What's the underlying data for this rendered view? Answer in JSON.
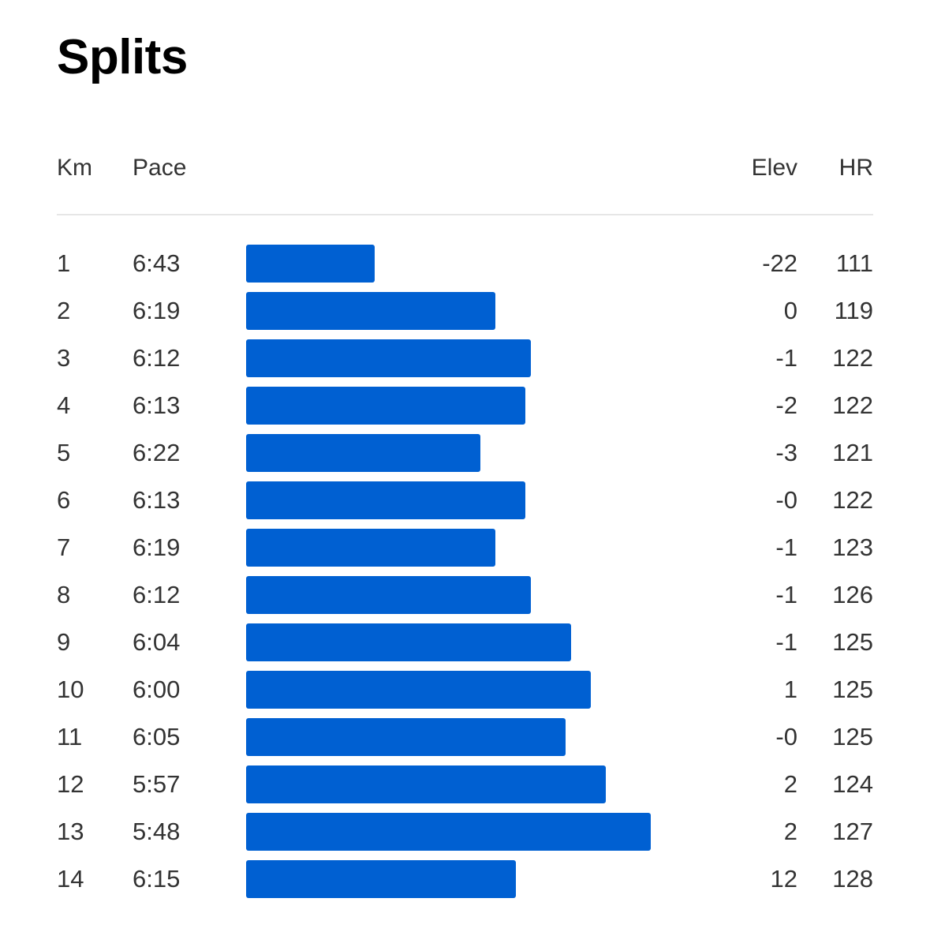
{
  "title": "Splits",
  "headers": {
    "km": "Km",
    "pace": "Pace",
    "elev": "Elev",
    "hr": "HR"
  },
  "colors": {
    "bar": "#0060D2",
    "divider": "#e6e6e6",
    "text": "#333333",
    "title": "#000000"
  },
  "chart_data": {
    "type": "bar",
    "orientation": "horizontal",
    "title": "Splits",
    "columns": [
      "Km",
      "Pace",
      "Elev",
      "HR"
    ],
    "bar_value": "pace_seconds_per_km",
    "categories": [
      "1",
      "2",
      "3",
      "4",
      "5",
      "6",
      "7",
      "8",
      "9",
      "10",
      "11",
      "12",
      "13",
      "14"
    ],
    "rows": [
      {
        "km": "1",
        "pace": "6:43",
        "pace_seconds": 403,
        "elev": "-22",
        "hr": "111"
      },
      {
        "km": "2",
        "pace": "6:19",
        "pace_seconds": 379,
        "elev": "0",
        "hr": "119"
      },
      {
        "km": "3",
        "pace": "6:12",
        "pace_seconds": 372,
        "elev": "-1",
        "hr": "122"
      },
      {
        "km": "4",
        "pace": "6:13",
        "pace_seconds": 373,
        "elev": "-2",
        "hr": "122"
      },
      {
        "km": "5",
        "pace": "6:22",
        "pace_seconds": 382,
        "elev": "-3",
        "hr": "121"
      },
      {
        "km": "6",
        "pace": "6:13",
        "pace_seconds": 373,
        "elev": "-0",
        "hr": "122"
      },
      {
        "km": "7",
        "pace": "6:19",
        "pace_seconds": 379,
        "elev": "-1",
        "hr": "123"
      },
      {
        "km": "8",
        "pace": "6:12",
        "pace_seconds": 372,
        "elev": "-1",
        "hr": "126"
      },
      {
        "km": "9",
        "pace": "6:04",
        "pace_seconds": 364,
        "elev": "-1",
        "hr": "125"
      },
      {
        "km": "10",
        "pace": "6:00",
        "pace_seconds": 360,
        "elev": "1",
        "hr": "125"
      },
      {
        "km": "11",
        "pace": "6:05",
        "pace_seconds": 365,
        "elev": "-0",
        "hr": "125"
      },
      {
        "km": "12",
        "pace": "5:57",
        "pace_seconds": 357,
        "elev": "2",
        "hr": "124"
      },
      {
        "km": "13",
        "pace": "5:48",
        "pace_seconds": 348,
        "elev": "2",
        "hr": "127"
      },
      {
        "km": "14",
        "pace": "6:15",
        "pace_seconds": 375,
        "elev": "12",
        "hr": "128"
      }
    ]
  }
}
